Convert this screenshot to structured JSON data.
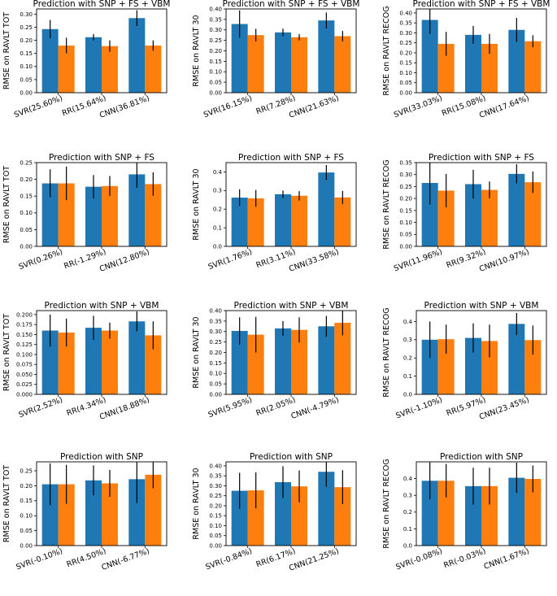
{
  "colors": {
    "series_a": "#1f77b4",
    "series_b": "#ff7f0e",
    "errbar": "#000000",
    "axis": "#000000"
  },
  "chart_data": [
    {
      "type": "bar",
      "title": "Prediction with SNP + FS + VBM",
      "ylabel": "RMSE on RAVLT TOT",
      "ylim": [
        0,
        0.32
      ],
      "yticks": [
        "0.00",
        "0.05",
        "0.10",
        "0.15",
        "0.20",
        "0.25",
        "0.30"
      ],
      "categories": [
        "SVR(25.60%)",
        "RR(15.64%)",
        "CNN(36.81%)"
      ],
      "series": [
        {
          "values": [
            0.243,
            0.212,
            0.285
          ],
          "err": [
            0.035,
            0.012,
            0.03
          ]
        },
        {
          "values": [
            0.18,
            0.178,
            0.18
          ],
          "err": [
            0.03,
            0.022,
            0.02
          ]
        }
      ]
    },
    {
      "type": "bar",
      "title": "Prediction with SNP + FS + VBM",
      "ylabel": "RMSE on RAVLT 30",
      "ylim": [
        0,
        0.4
      ],
      "yticks": [
        "0.00",
        "0.05",
        "0.10",
        "0.15",
        "0.20",
        "0.25",
        "0.30",
        "0.35",
        "0.40"
      ],
      "categories": [
        "SVR(16.15%)",
        "RR(7.28%)",
        "CNN(21.63%)"
      ],
      "series": [
        {
          "values": [
            0.328,
            0.288,
            0.345
          ],
          "err": [
            0.065,
            0.018,
            0.038
          ]
        },
        {
          "values": [
            0.275,
            0.265,
            0.27
          ],
          "err": [
            0.03,
            0.015,
            0.025
          ]
        }
      ]
    },
    {
      "type": "bar",
      "title": "Prediction with SNP + FS + VBM",
      "ylabel": "RMSE on RAVLT RECOG",
      "ylim": [
        0,
        0.42
      ],
      "yticks": [
        "0.00",
        "0.05",
        "0.10",
        "0.15",
        "0.20",
        "0.25",
        "0.30",
        "0.35",
        "0.40"
      ],
      "categories": [
        "SVR(33.03%)",
        "RR(15.08%)",
        "CNN(17.64%)"
      ],
      "series": [
        {
          "values": [
            0.365,
            0.29,
            0.315
          ],
          "err": [
            0.07,
            0.045,
            0.06
          ]
        },
        {
          "values": [
            0.245,
            0.245,
            0.258
          ],
          "err": [
            0.06,
            0.05,
            0.03
          ]
        }
      ]
    },
    {
      "type": "bar",
      "title": "Prediction with SNP + FS",
      "ylabel": "RMSE on RAVLT TOT",
      "ylim": [
        0,
        0.25
      ],
      "yticks": [
        "0.00",
        "0.05",
        "0.10",
        "0.15",
        "0.20",
        "0.25"
      ],
      "categories": [
        "SVR(0.26%)",
        "RR(-1.29%)",
        "CNN(12.80%)"
      ],
      "series": [
        {
          "values": [
            0.188,
            0.178,
            0.215
          ],
          "err": [
            0.042,
            0.035,
            0.04
          ]
        },
        {
          "values": [
            0.188,
            0.18,
            0.186
          ],
          "err": [
            0.05,
            0.03,
            0.035
          ]
        }
      ]
    },
    {
      "type": "bar",
      "title": "Prediction with SNP + FS",
      "ylabel": "RMSE on RAVLT 30",
      "ylim": [
        0,
        0.45
      ],
      "yticks": [
        "0.0",
        "0.1",
        "0.2",
        "0.3",
        "0.4"
      ],
      "categories": [
        "SVR(1.76%)",
        "RR(3.11%)",
        "CNN(33.58%)"
      ],
      "series": [
        {
          "values": [
            0.262,
            0.28,
            0.397
          ],
          "err": [
            0.045,
            0.02,
            0.04
          ]
        },
        {
          "values": [
            0.258,
            0.272,
            0.263
          ],
          "err": [
            0.045,
            0.025,
            0.035
          ]
        }
      ]
    },
    {
      "type": "bar",
      "title": "Prediction with SNP + FS",
      "ylabel": "RMSE on RAVLT RECOG",
      "ylim": [
        0,
        0.35
      ],
      "yticks": [
        "0.00",
        "0.05",
        "0.10",
        "0.15",
        "0.20",
        "0.25",
        "0.30",
        "0.35"
      ],
      "categories": [
        "SVR(11.96%)",
        "RR(9.32%)",
        "CNN(10.97%)"
      ],
      "series": [
        {
          "values": [
            0.265,
            0.26,
            0.303
          ],
          "err": [
            0.09,
            0.06,
            0.04
          ]
        },
        {
          "values": [
            0.233,
            0.236,
            0.268
          ],
          "err": [
            0.07,
            0.035,
            0.045
          ]
        }
      ]
    },
    {
      "type": "bar",
      "title": "Prediction with SNP + VBM",
      "ylabel": "RMSE on RAVLT TOT",
      "ylim": [
        0,
        0.21
      ],
      "yticks": [
        "0.000",
        "0.025",
        "0.050",
        "0.075",
        "0.100",
        "0.125",
        "0.150",
        "0.175",
        "0.200"
      ],
      "categories": [
        "SVR(2.52%)",
        "RR(4.34%)",
        "CNN(18.88%)"
      ],
      "series": [
        {
          "values": [
            0.16,
            0.167,
            0.183
          ],
          "err": [
            0.04,
            0.03,
            0.025
          ]
        },
        {
          "values": [
            0.155,
            0.16,
            0.148
          ],
          "err": [
            0.035,
            0.02,
            0.035
          ]
        }
      ]
    },
    {
      "type": "bar",
      "title": "Prediction with SNP + VBM",
      "ylabel": "RMSE on RAVLT 30",
      "ylim": [
        0,
        0.4
      ],
      "yticks": [
        "0.00",
        "0.05",
        "0.10",
        "0.15",
        "0.20",
        "0.25",
        "0.30",
        "0.35",
        "0.40"
      ],
      "categories": [
        "SVR(5.95%)",
        "RR(2.05%)",
        "CNN(-4.79%)"
      ],
      "series": [
        {
          "values": [
            0.303,
            0.315,
            0.325
          ],
          "err": [
            0.065,
            0.035,
            0.05
          ]
        },
        {
          "values": [
            0.285,
            0.308,
            0.342
          ],
          "err": [
            0.085,
            0.06,
            0.06
          ]
        }
      ]
    },
    {
      "type": "bar",
      "title": "Prediction with SNP + VBM",
      "ylabel": "RMSE on RAVLT RECOG",
      "ylim": [
        0,
        0.46
      ],
      "yticks": [
        "0.0",
        "0.1",
        "0.2",
        "0.3",
        "0.4"
      ],
      "categories": [
        "SVR(-1.10%)",
        "RR(5.97%)",
        "CNN(23.45%)"
      ],
      "series": [
        {
          "values": [
            0.3,
            0.31,
            0.387
          ],
          "err": [
            0.1,
            0.08,
            0.06
          ]
        },
        {
          "values": [
            0.303,
            0.293,
            0.298
          ],
          "err": [
            0.08,
            0.09,
            0.08
          ]
        }
      ]
    },
    {
      "type": "bar",
      "title": "Prediction with SNP",
      "ylabel": "RMSE on RAVLT TOT",
      "ylim": [
        0,
        0.28
      ],
      "yticks": [
        "0.00",
        "0.05",
        "0.10",
        "0.15",
        "0.20",
        "0.25"
      ],
      "categories": [
        "SVR(-0.10%)",
        "RR(4.50%)",
        "CNN(-6.77%)"
      ],
      "series": [
        {
          "values": [
            0.205,
            0.218,
            0.222
          ],
          "err": [
            0.07,
            0.05,
            0.08
          ]
        },
        {
          "values": [
            0.205,
            0.208,
            0.237
          ],
          "err": [
            0.065,
            0.045,
            0.045
          ]
        }
      ]
    },
    {
      "type": "bar",
      "title": "Prediction with SNP",
      "ylabel": "RMSE on RAVLT 30",
      "ylim": [
        0,
        0.42
      ],
      "yticks": [
        "0.00",
        "0.05",
        "0.10",
        "0.15",
        "0.20",
        "0.25",
        "0.30",
        "0.35",
        "0.40"
      ],
      "categories": [
        "SVR(-0.84%)",
        "RR(6.17%)",
        "CNN(21.25%)"
      ],
      "series": [
        {
          "values": [
            0.275,
            0.318,
            0.37
          ],
          "err": [
            0.09,
            0.08,
            0.075
          ]
        },
        {
          "values": [
            0.277,
            0.297,
            0.293
          ],
          "err": [
            0.09,
            0.08,
            0.085
          ]
        }
      ]
    },
    {
      "type": "bar",
      "title": "Prediction with SNP",
      "ylabel": "RMSE on RAVLT RECOG",
      "ylim": [
        0,
        0.5
      ],
      "yticks": [
        "0.0",
        "0.1",
        "0.2",
        "0.3",
        "0.4"
      ],
      "categories": [
        "SVR(-0.08%)",
        "RR(-0.03%)",
        "CNN(1.67%)"
      ],
      "series": [
        {
          "values": [
            0.387,
            0.355,
            0.405
          ],
          "err": [
            0.11,
            0.11,
            0.09
          ]
        },
        {
          "values": [
            0.387,
            0.355,
            0.398
          ],
          "err": [
            0.1,
            0.11,
            0.08
          ]
        }
      ]
    }
  ]
}
